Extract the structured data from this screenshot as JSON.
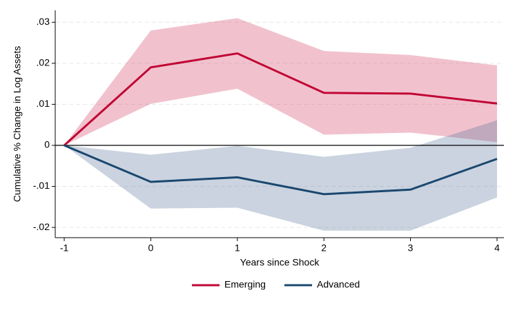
{
  "chart_data": {
    "type": "line",
    "x_label": "Years since Shock",
    "y_label": "Cumulative % Change in Log Assets",
    "x": [
      -1,
      0,
      1,
      2,
      3,
      4
    ],
    "xlim": [
      -1.104,
      4.08
    ],
    "xticks": [
      -1,
      0,
      1,
      2,
      3,
      4
    ],
    "ylim": [
      -0.0225,
      0.0329
    ],
    "yticks": [
      {
        "value": 0.03,
        "label": ".03"
      },
      {
        "value": 0.02,
        "label": ".02"
      },
      {
        "value": 0.01,
        "label": ".01"
      },
      0,
      {
        "value": -0.01,
        "label": "-.01"
      },
      {
        "value": -0.02,
        "label": "-.02"
      }
    ],
    "grid": true,
    "hline": 0,
    "legend": "bottom",
    "series": [
      {
        "name": "Emerging",
        "color": "#c10534",
        "band_color": "rgba(214,70,105,0.33)",
        "values": [
          0,
          0.019,
          0.0224,
          0.0128,
          0.0126,
          0.0102
        ],
        "upper": [
          0,
          0.028,
          0.031,
          0.023,
          0.022,
          0.0195
        ],
        "lower": [
          0,
          0.0101,
          0.0138,
          0.0026,
          0.0031,
          0.0008
        ]
      },
      {
        "name": "Advanced",
        "color": "#1a476f",
        "band_color": "rgba(80,110,150,0.3)",
        "values": [
          0,
          -0.0089,
          -0.0078,
          -0.0119,
          -0.0108,
          -0.0033
        ],
        "upper": [
          0,
          -0.0023,
          -0.0001,
          -0.0028,
          -0.0006,
          0.0061
        ],
        "lower": [
          0,
          -0.0154,
          -0.0152,
          -0.0208,
          -0.0208,
          -0.0127
        ]
      }
    ]
  }
}
